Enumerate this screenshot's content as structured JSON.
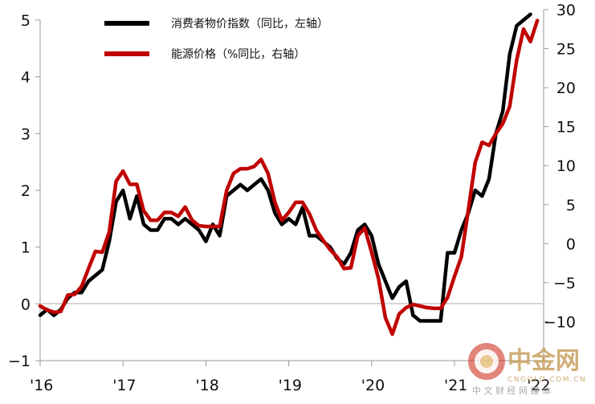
{
  "chart_data": {
    "type": "line",
    "title": "",
    "x_ticks": [
      "'16",
      "'17",
      "'18",
      "'19",
      "'20",
      "'21",
      "'22"
    ],
    "left_axis": {
      "ylim": [
        -1,
        5
      ],
      "ticks": [
        "−1",
        "0",
        "1",
        "2",
        "3",
        "4",
        "5"
      ]
    },
    "right_axis": {
      "ylim": [
        -15,
        30
      ],
      "ticks": [
        "−10",
        "−5",
        "0",
        "5",
        "10",
        "15",
        "20",
        "25",
        "30"
      ]
    },
    "grid": false,
    "legend_position": "top-center",
    "series": [
      {
        "name": "消费者物价指数（同比，左轴）",
        "axis": "left",
        "color": "#000000",
        "x": [
          "2016-01",
          "2016-02",
          "2016-03",
          "2016-04",
          "2016-05",
          "2016-06",
          "2016-07",
          "2016-08",
          "2016-09",
          "2016-10",
          "2016-11",
          "2016-12",
          "2017-01",
          "2017-02",
          "2017-03",
          "2017-04",
          "2017-05",
          "2017-06",
          "2017-07",
          "2017-08",
          "2017-09",
          "2017-10",
          "2017-11",
          "2017-12",
          "2018-01",
          "2018-02",
          "2018-03",
          "2018-04",
          "2018-05",
          "2018-06",
          "2018-07",
          "2018-08",
          "2018-09",
          "2018-10",
          "2018-11",
          "2018-12",
          "2019-01",
          "2019-02",
          "2019-03",
          "2019-04",
          "2019-05",
          "2019-06",
          "2019-07",
          "2019-08",
          "2019-09",
          "2019-10",
          "2019-11",
          "2019-12",
          "2020-01",
          "2020-02",
          "2020-03",
          "2020-04",
          "2020-05",
          "2020-06",
          "2020-07",
          "2020-08",
          "2020-09",
          "2020-10",
          "2020-11",
          "2020-12",
          "2021-01",
          "2021-02",
          "2021-03",
          "2021-04",
          "2021-05",
          "2021-06",
          "2021-07",
          "2021-08",
          "2021-09",
          "2021-10",
          "2021-11",
          "2021-12",
          "2022-01"
        ],
        "values": [
          -0.2,
          -0.1,
          -0.2,
          -0.1,
          0.1,
          0.2,
          0.2,
          0.4,
          0.5,
          0.6,
          1.1,
          1.8,
          2.0,
          1.5,
          1.9,
          1.4,
          1.3,
          1.3,
          1.5,
          1.5,
          1.4,
          1.5,
          1.4,
          1.3,
          1.1,
          1.4,
          1.2,
          1.9,
          2.0,
          2.1,
          2.0,
          2.1,
          2.2,
          2.0,
          1.6,
          1.4,
          1.5,
          1.4,
          1.7,
          1.2,
          1.2,
          1.1,
          1.0,
          0.8,
          0.7,
          0.9,
          1.3,
          1.4,
          1.2,
          0.7,
          0.4,
          0.1,
          0.3,
          0.4,
          -0.2,
          -0.3,
          -0.3,
          -0.3,
          -0.3,
          0.9,
          0.9,
          1.3,
          1.6,
          2.0,
          1.9,
          2.2,
          3.0,
          3.4,
          4.4,
          4.9,
          5.0,
          5.1,
          null
        ]
      },
      {
        "name": "能源价格（%同比，右轴）",
        "axis": "right",
        "color": "#c00000",
        "x": [
          "2016-01",
          "2016-02",
          "2016-03",
          "2016-04",
          "2016-05",
          "2016-06",
          "2016-07",
          "2016-08",
          "2016-09",
          "2016-10",
          "2016-11",
          "2016-12",
          "2017-01",
          "2017-02",
          "2017-03",
          "2017-04",
          "2017-05",
          "2017-06",
          "2017-07",
          "2017-08",
          "2017-09",
          "2017-10",
          "2017-11",
          "2017-12",
          "2018-01",
          "2018-02",
          "2018-03",
          "2018-04",
          "2018-05",
          "2018-06",
          "2018-07",
          "2018-08",
          "2018-09",
          "2018-10",
          "2018-11",
          "2018-12",
          "2019-01",
          "2019-02",
          "2019-03",
          "2019-04",
          "2019-05",
          "2019-06",
          "2019-07",
          "2019-08",
          "2019-09",
          "2019-10",
          "2019-11",
          "2019-12",
          "2020-01",
          "2020-02",
          "2020-03",
          "2020-04",
          "2020-05",
          "2020-06",
          "2020-07",
          "2020-08",
          "2020-09",
          "2020-10",
          "2020-11",
          "2020-12",
          "2021-01",
          "2021-02",
          "2021-03",
          "2021-04",
          "2021-05",
          "2021-06",
          "2021-07",
          "2021-08",
          "2021-09",
          "2021-10",
          "2021-11",
          "2021-12",
          "2022-01"
        ],
        "values": [
          -8.0,
          -8.5,
          -8.8,
          -8.7,
          -6.6,
          -6.5,
          -5.5,
          -3.2,
          -1.0,
          -1.1,
          1.5,
          8.0,
          9.3,
          7.6,
          7.6,
          4.2,
          3.0,
          3.0,
          4.0,
          4.0,
          3.5,
          4.7,
          3.0,
          2.3,
          2.2,
          2.2,
          2.2,
          6.8,
          9.0,
          9.6,
          9.6,
          9.9,
          10.8,
          9.0,
          5.3,
          3.0,
          4.0,
          5.3,
          5.3,
          3.8,
          1.7,
          0.4,
          -0.8,
          -1.7,
          -3.2,
          -3.1,
          1.0,
          2.0,
          -1.1,
          -4.5,
          -9.5,
          -11.6,
          -9.0,
          -8.2,
          -7.8,
          -8.0,
          -8.2,
          -8.3,
          -8.3,
          -6.9,
          -4.2,
          -1.7,
          4.3,
          10.4,
          13.0,
          12.6,
          14.1,
          15.4,
          17.6,
          23.5,
          27.5,
          25.9,
          28.6
        ]
      }
    ]
  },
  "legend": {
    "items": [
      {
        "label": "消费者物价指数（同比，左轴）",
        "color": "#000000"
      },
      {
        "label": "能源价格（%同比，右轴）",
        "color": "#c00000"
      }
    ]
  },
  "watermark": {
    "text": "中金网",
    "domain": "CNGOLD.COM.CN",
    "tagline": "中 文 财 经 网 媒 体",
    "colors": {
      "primary": "#c8a060",
      "accent": "#e8c080",
      "red": "#d04030"
    }
  }
}
